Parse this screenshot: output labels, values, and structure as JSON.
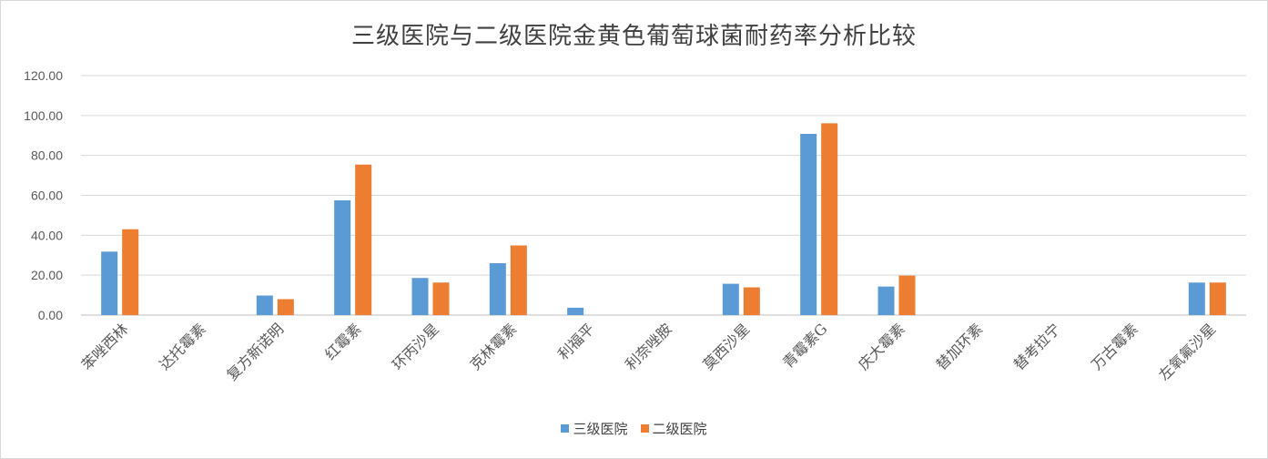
{
  "chart_data": {
    "type": "bar",
    "title": "三级医院与二级医院金黄色葡萄球菌耐药率分析比较",
    "xlabel": "",
    "ylabel": "",
    "ylim": [
      0,
      120
    ],
    "yticks": [
      "0.00",
      "20.00",
      "40.00",
      "60.00",
      "80.00",
      "100.00",
      "120.00"
    ],
    "grid": true,
    "legend_position": "bottom",
    "categories": [
      "苯唑西林",
      "达托霉素",
      "复方新诺明",
      "红霉素",
      "环丙沙星",
      "克林霉素",
      "利福平",
      "利奈唑胺",
      "莫西沙星",
      "青霉素G",
      "庆大霉素",
      "替加环素",
      "替考拉宁",
      "万古霉素",
      "左氧氟沙星"
    ],
    "series": [
      {
        "name": "三级医院",
        "color": "#5b9bd5",
        "values": [
          31.8,
          0,
          9.8,
          57.5,
          18.6,
          26.0,
          3.7,
          0,
          15.7,
          90.8,
          14.3,
          0,
          0,
          0,
          16.3
        ]
      },
      {
        "name": "二级医院",
        "color": "#ed7d31",
        "values": [
          43.0,
          0,
          8.0,
          75.4,
          16.3,
          34.9,
          0,
          0,
          13.9,
          96.1,
          19.8,
          0,
          0,
          0,
          16.3
        ]
      }
    ]
  }
}
